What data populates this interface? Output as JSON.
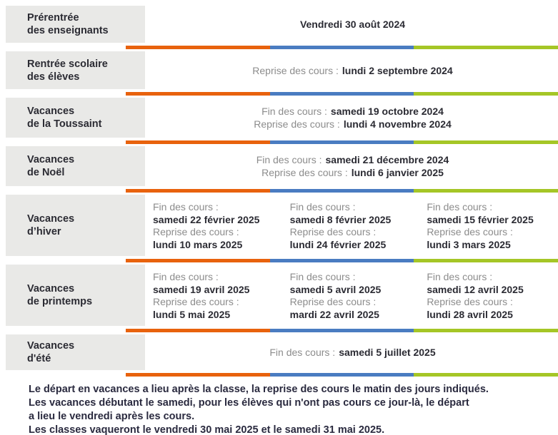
{
  "colors": {
    "zone_orange": "#e8620d",
    "zone_blue": "#4a7cc1",
    "zone_green": "#a5c626",
    "label_bg": "#e9e9e7"
  },
  "table": {
    "rows": [
      {
        "label_line1": "Prérentrée",
        "label_line2": "des enseignants",
        "date": "Vendredi 30 août 2024"
      },
      {
        "label_line1": "Rentrée scolaire",
        "label_line2": "des élèves",
        "reprise_prefix": "Reprise des cours :",
        "reprise_date": "lundi 2 septembre 2024"
      },
      {
        "label_line1": "Vacances",
        "label_line2": "de la Toussaint",
        "fin_prefix": "Fin des cours :",
        "fin_date": "samedi 19 octobre 2024",
        "reprise_prefix": "Reprise des cours :",
        "reprise_date": "lundi 4 novembre 2024"
      },
      {
        "label_line1": "Vacances",
        "label_line2": "de Noël",
        "fin_prefix": "Fin des cours :",
        "fin_date": "samedi 21 décembre 2024",
        "reprise_prefix": "Reprise des cours :",
        "reprise_date": "lundi 6 janvier 2025"
      },
      {
        "label_line1": "Vacances",
        "label_line2": "d’hiver",
        "zones": [
          {
            "fin_prefix": "Fin des cours :",
            "fin_date": "samedi 22 février 2025",
            "reprise_prefix": "Reprise des cours :",
            "reprise_date": "lundi 10 mars 2025"
          },
          {
            "fin_prefix": "Fin des cours :",
            "fin_date": "samedi 8 février 2025",
            "reprise_prefix": "Reprise des cours :",
            "reprise_date": "lundi 24 février 2025"
          },
          {
            "fin_prefix": "Fin des cours :",
            "fin_date": "samedi 15 février 2025",
            "reprise_prefix": "Reprise des cours :",
            "reprise_date": "lundi 3 mars 2025"
          }
        ]
      },
      {
        "label_line1": "Vacances",
        "label_line2": "de printemps",
        "zones": [
          {
            "fin_prefix": "Fin des cours :",
            "fin_date": "samedi 19 avril 2025",
            "reprise_prefix": "Reprise des cours :",
            "reprise_date": "lundi 5 mai 2025"
          },
          {
            "fin_prefix": "Fin des cours :",
            "fin_date": "samedi 5 avril 2025",
            "reprise_prefix": "Reprise des cours :",
            "reprise_date": "mardi 22 avril 2025"
          },
          {
            "fin_prefix": "Fin des cours :",
            "fin_date": "samedi 12 avril 2025",
            "reprise_prefix": "Reprise des cours :",
            "reprise_date": "lundi 28 avril 2025"
          }
        ]
      },
      {
        "label_line1": "Vacances",
        "label_line2": "d'été",
        "fin_prefix": "Fin des cours :",
        "fin_date": "samedi 5 juillet 2025"
      }
    ]
  },
  "footer": {
    "lines": [
      "Le départ en vacances a lieu après la classe, la reprise des cours le matin des jours indiqués.",
      "Les vacances débutant le samedi, pour les élèves qui n'ont pas cours ce jour-là, le départ",
      "a lieu le vendredi après les cours.",
      "Les classes vaqueront le vendredi 30 mai 2025 et le samedi 31 mai 2025."
    ]
  }
}
